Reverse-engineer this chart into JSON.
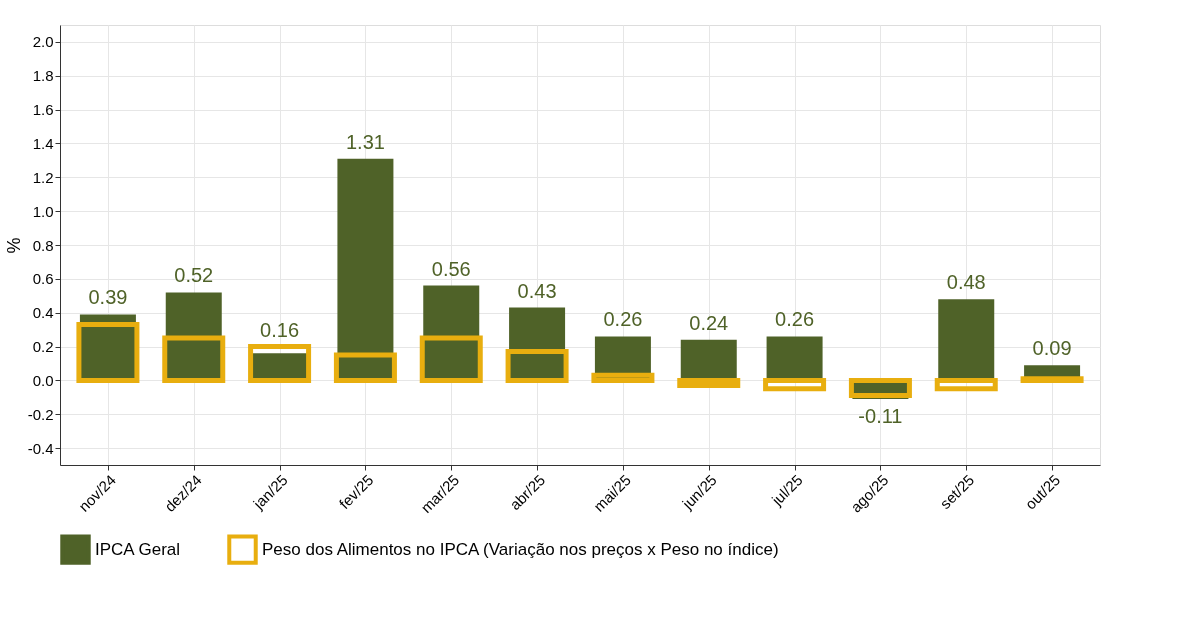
{
  "chart_data": {
    "type": "bar",
    "ylabel": "%",
    "categories": [
      "nov/24",
      "dez/24",
      "jan/25",
      "fev/25",
      "mar/25",
      "abr/25",
      "mai/25",
      "jun/25",
      "jul/25",
      "ago/25",
      "set/25",
      "out/25"
    ],
    "series": [
      {
        "name": "IPCA Geral",
        "color": "#4f6228",
        "values": [
          0.39,
          0.52,
          0.16,
          1.31,
          0.56,
          0.43,
          0.26,
          0.24,
          0.26,
          -0.11,
          0.48,
          0.09
        ],
        "value_labels": [
          "0.39",
          "0.52",
          "0.16",
          "1.31",
          "0.56",
          "0.43",
          "0.26",
          "0.24",
          "0.26",
          "-0.11",
          "0.48",
          "0.09"
        ]
      },
      {
        "name": "Peso dos Alimentos no IPCA (Variação nos preços x Peso no índice)",
        "color": "#e8ae0f",
        "values": [
          0.33,
          0.25,
          0.2,
          0.15,
          0.25,
          0.17,
          0.03,
          -0.03,
          -0.05,
          -0.09,
          -0.05,
          0.01
        ]
      }
    ],
    "ylim": [
      -0.5,
      2.1
    ],
    "yticks": [
      {
        "value": -0.4,
        "label": "-0.4"
      },
      {
        "value": -0.2,
        "label": "-0.2"
      },
      {
        "value": 0,
        "label": "0.0"
      },
      {
        "value": 0.2,
        "label": "0.2"
      },
      {
        "value": 0.4,
        "label": "0.4"
      },
      {
        "value": 0.6,
        "label": "0.6"
      },
      {
        "value": 0.8,
        "label": "0.8"
      },
      {
        "value": 1,
        "label": "1.0"
      },
      {
        "value": 1.2,
        "label": "1.2"
      },
      {
        "value": 1.4,
        "label": "1.4"
      },
      {
        "value": 1.6,
        "label": "1.6"
      },
      {
        "value": 1.8,
        "label": "1.8"
      },
      {
        "value": 2,
        "label": "2.0"
      }
    ],
    "grid": true,
    "legend": "bottom"
  }
}
